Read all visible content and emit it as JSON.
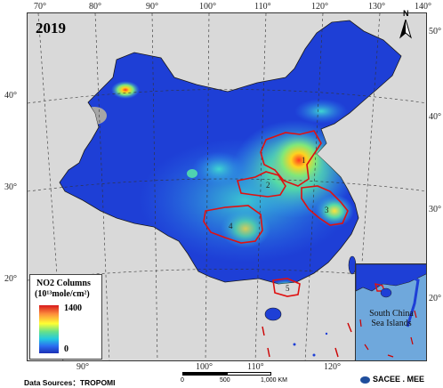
{
  "title": "2019",
  "lon_labels": [
    {
      "label": "70°"
    },
    {
      "label": "80°"
    },
    {
      "label": "90°"
    },
    {
      "label": "100°"
    },
    {
      "label": "110°"
    },
    {
      "label": "120°"
    },
    {
      "label": "130°"
    },
    {
      "label": "140°"
    }
  ],
  "lon_labels_bottom": [
    {
      "label": "90°"
    },
    {
      "label": "100°"
    },
    {
      "label": "110°"
    },
    {
      "label": "120°"
    }
  ],
  "lat_labels_left": [
    {
      "label": "40°"
    },
    {
      "label": "30°"
    },
    {
      "label": "20°"
    }
  ],
  "lat_labels_right": [
    {
      "label": "50°"
    },
    {
      "label": "40°"
    },
    {
      "label": "30°"
    },
    {
      "label": "20°"
    }
  ],
  "regions": [
    {
      "number": "1"
    },
    {
      "number": "2"
    },
    {
      "number": "3"
    },
    {
      "number": "4"
    },
    {
      "number": "5"
    }
  ],
  "legend": {
    "title_line1": "NO2 Columns",
    "title_line2": "(10¹³mole/cm²)",
    "max_label": "1400",
    "min_label": "0",
    "colors": [
      "#d7191c",
      "#fd8d3c",
      "#ffff33",
      "#66e08a",
      "#23c9e0",
      "#2b6cf0",
      "#1b2fb5"
    ]
  },
  "inset_label_line1": "South China",
  "inset_label_line2": "Sea Islands",
  "data_source": "Data Sources：TROPOMI",
  "scale_bar": {
    "t0": "0",
    "t1": "500",
    "t2": "1,000 KM"
  },
  "logo_text": "SACEE . MEE",
  "north_label": "N"
}
